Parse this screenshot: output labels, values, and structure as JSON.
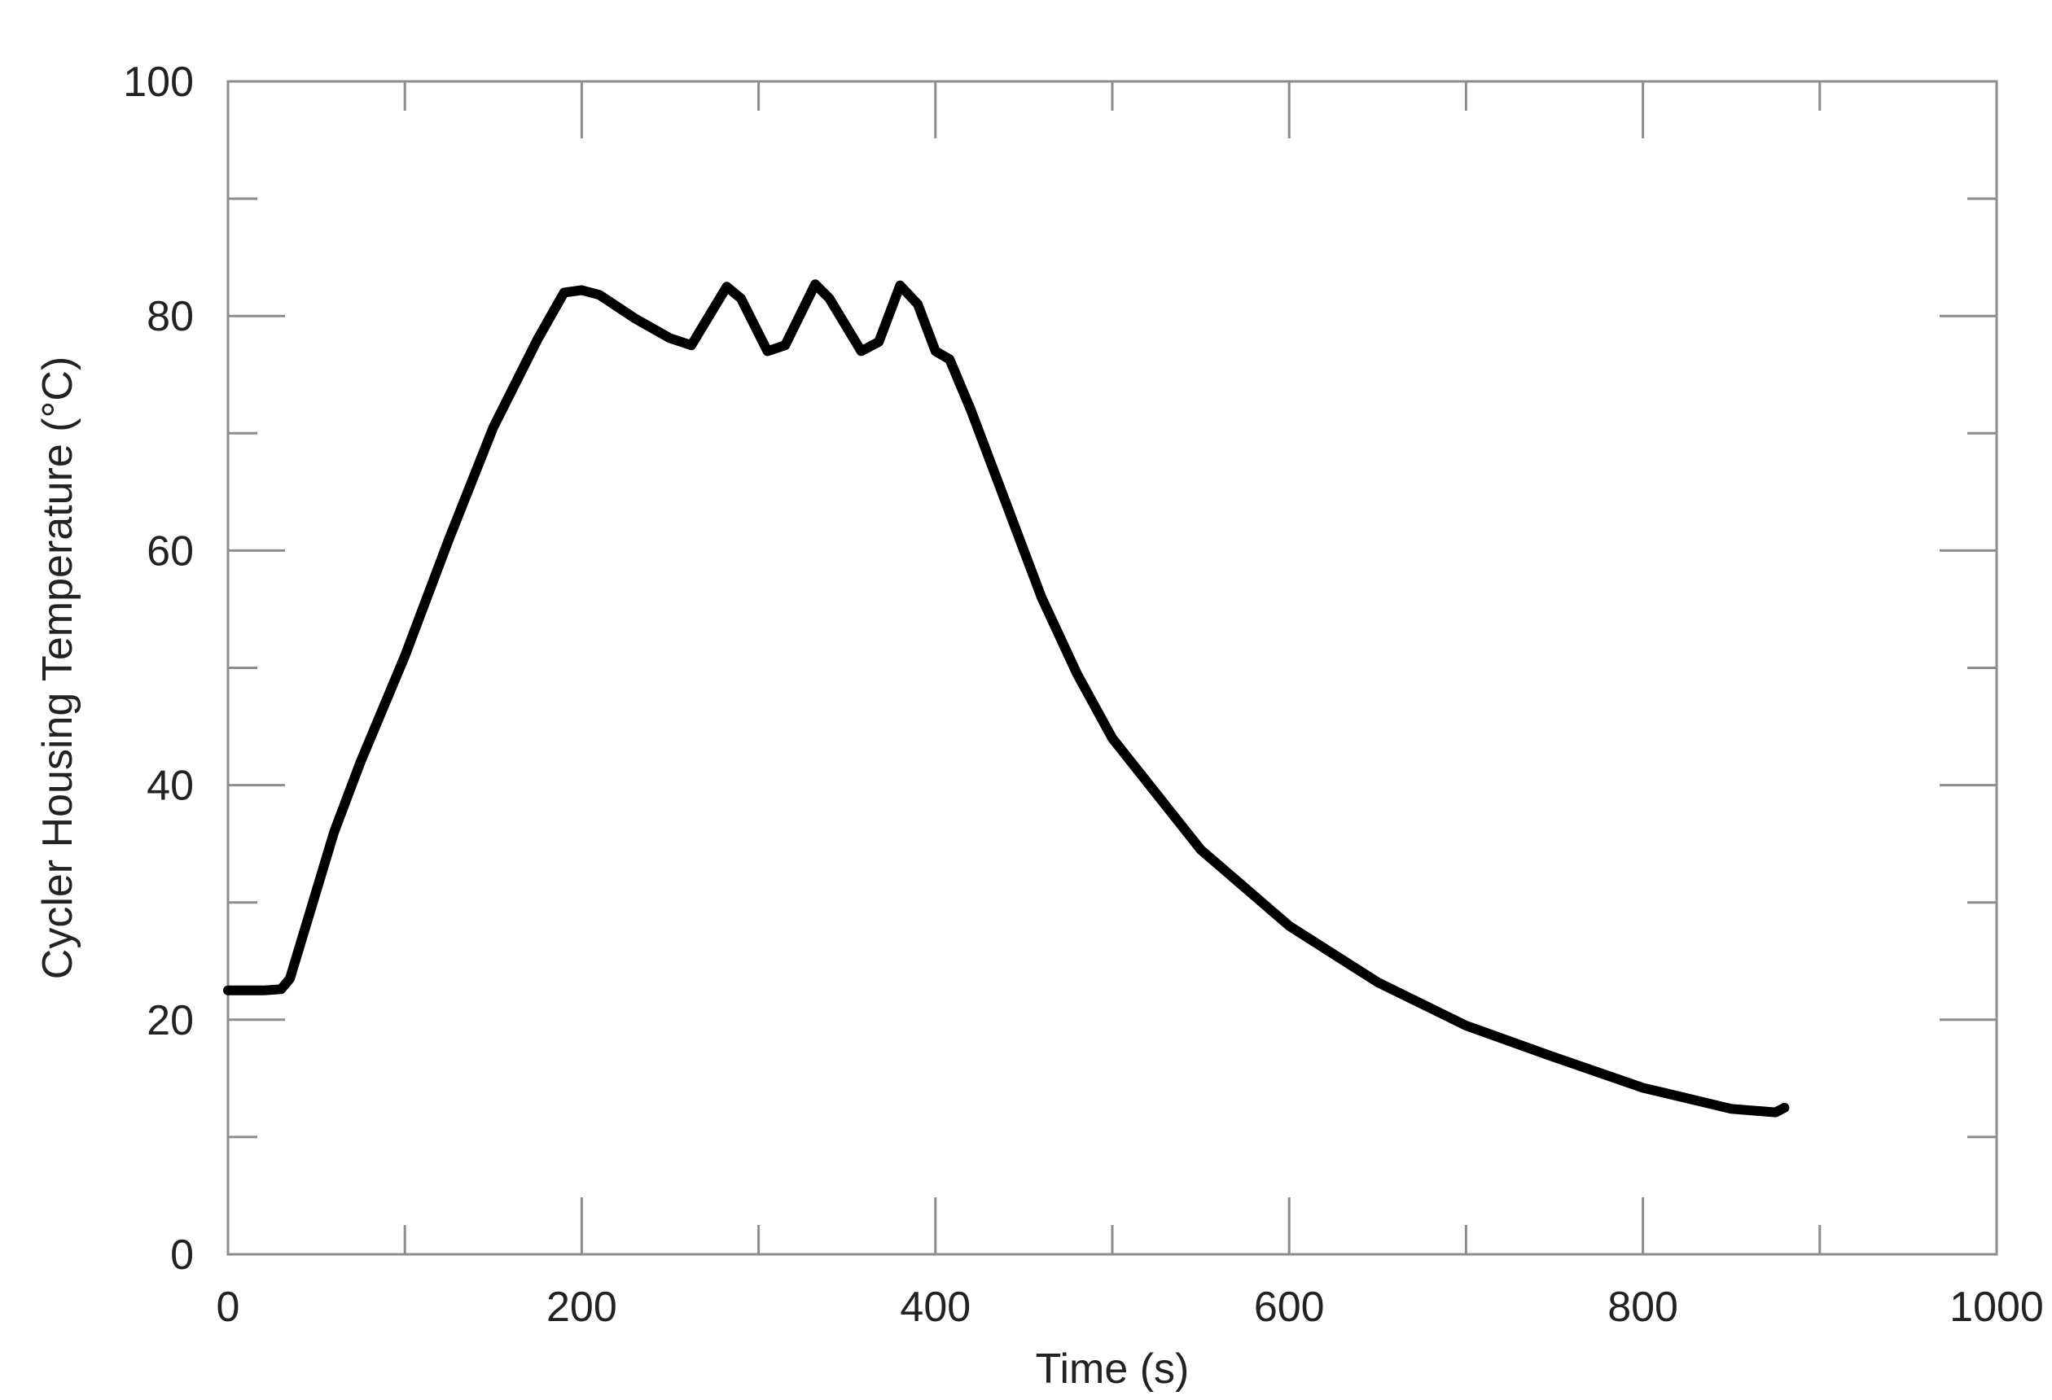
{
  "chart_data": {
    "type": "line",
    "title": "",
    "xlabel": "Time (s)",
    "ylabel": "Cycler Housing Temperature (°C)",
    "xlim": [
      0,
      1000
    ],
    "ylim": [
      0,
      100
    ],
    "x_ticks": [
      0,
      200,
      400,
      600,
      800,
      1000
    ],
    "x_tick_labels": [
      "0",
      "200",
      "400",
      "600",
      "800",
      "1000"
    ],
    "y_ticks": [
      0,
      20,
      40,
      60,
      80,
      100
    ],
    "y_tick_labels": [
      "0",
      "20",
      "40",
      "60",
      "80",
      "100"
    ],
    "x_minor_ticks": [
      100,
      300,
      500,
      700,
      900
    ],
    "y_minor_ticks": [
      10,
      30,
      50,
      70,
      90
    ],
    "grid": false,
    "legend": "none",
    "line_color": "#000000",
    "series": [
      {
        "x": [
          0,
          10,
          20,
          30,
          35,
          40,
          50,
          60,
          75,
          100,
          125,
          150,
          175,
          190,
          200,
          210,
          230,
          250,
          262,
          270,
          282,
          290,
          305,
          315,
          332,
          340,
          358,
          368,
          380,
          390,
          400,
          408,
          420,
          440,
          460,
          480,
          500,
          550,
          600,
          650,
          700,
          750,
          800,
          850,
          875,
          880
        ],
        "y": [
          22.5,
          22.5,
          22.5,
          22.6,
          23.5,
          26,
          31,
          36,
          42,
          51,
          61,
          70.5,
          78,
          82,
          82.2,
          81.8,
          79.8,
          78.1,
          77.5,
          79.5,
          82.5,
          81.5,
          77,
          77.5,
          82.7,
          81.5,
          77,
          77.8,
          82.6,
          81,
          77,
          76.3,
          72,
          64,
          56,
          49.5,
          44,
          34.5,
          28,
          23.2,
          19.5,
          16.8,
          14.2,
          12.4,
          12.1,
          12.5
        ]
      }
    ]
  }
}
